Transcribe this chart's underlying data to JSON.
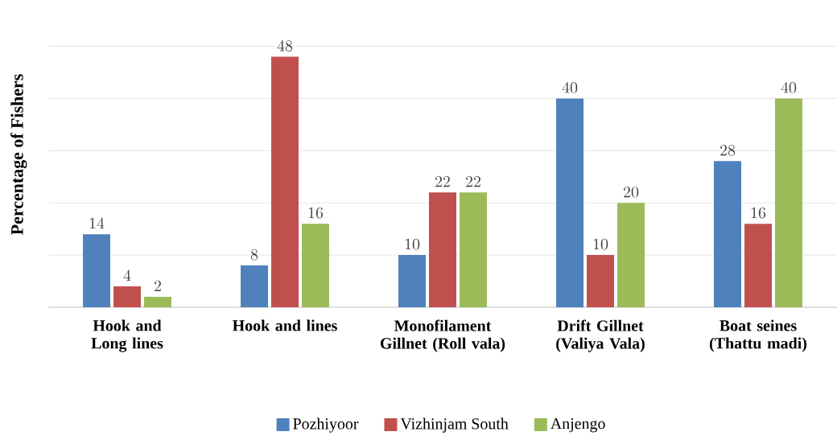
{
  "chart_data": {
    "type": "bar",
    "ylabel": "Percentage of Fishers",
    "categories": [
      "Hook and Long lines",
      "Hook and lines",
      "Monofilament Gillnet (Roll vala)",
      "Drift Gillnet (Valiya Vala)",
      "Boat seines (Thattu madi)"
    ],
    "series": [
      {
        "name": "Pozhiyoor",
        "color": "#4f81bd",
        "values": [
          14,
          8,
          10,
          40,
          28
        ]
      },
      {
        "name": "Vizhinjam South",
        "color": "#c0504d",
        "values": [
          4,
          48,
          22,
          10,
          16
        ]
      },
      {
        "name": "Anjengo",
        "color": "#9bbb59",
        "values": [
          2,
          16,
          22,
          20,
          40
        ]
      }
    ],
    "tick_labels": "x",
    "grid": "y",
    "legend": "bottom",
    "data_labels": true
  }
}
